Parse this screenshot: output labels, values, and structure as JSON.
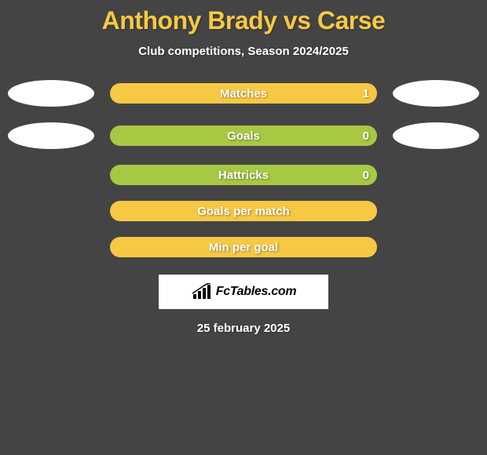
{
  "title": "Anthony Brady vs Carse",
  "subtitle": "Club competitions, Season 2024/2025",
  "date": "25 february 2025",
  "attribution": "FcTables.com",
  "colors": {
    "background": "#444444",
    "title": "#f7c843",
    "text": "#ffffff",
    "ellipse": "#ffffff",
    "attribution_bg": "#ffffff",
    "attribution_text": "#000000"
  },
  "stats": [
    {
      "label": "Matches",
      "value_right": "1",
      "fill_color": "#f7c843",
      "show_ellipses": true,
      "show_value": true
    },
    {
      "label": "Goals",
      "value_right": "0",
      "fill_color": "#a7c843",
      "show_ellipses": true,
      "show_value": true
    },
    {
      "label": "Hattricks",
      "value_right": "0",
      "fill_color": "#a7c843",
      "show_ellipses": false,
      "show_value": true
    },
    {
      "label": "Goals per match",
      "value_right": "",
      "fill_color": "#f7c843",
      "show_ellipses": false,
      "show_value": false
    },
    {
      "label": "Min per goal",
      "value_right": "",
      "fill_color": "#f7c843",
      "show_ellipses": false,
      "show_value": false
    }
  ]
}
